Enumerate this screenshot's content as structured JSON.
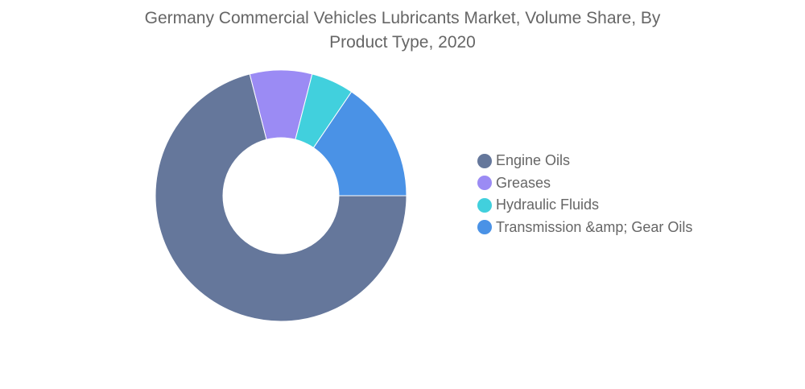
{
  "chart_data": {
    "type": "pie",
    "title": "Germany Commercial Vehicles Lubricants Market, Volume Share, By Product Type, 2020",
    "title_lines": [
      "Germany Commercial Vehicles Lubricants Market, Volume Share, By",
      "Product Type, 2020"
    ],
    "categories": [
      "Engine Oils",
      "Greases",
      "Hydraulic Fluids",
      "Transmission &amp; Gear Oils"
    ],
    "values": [
      71,
      8,
      5.5,
      15.5
    ],
    "unit": "%",
    "donut": true,
    "legend_position": "right",
    "colors": [
      "#65779b",
      "#9b8bf4",
      "#41d0dd",
      "#4a92e6"
    ]
  }
}
